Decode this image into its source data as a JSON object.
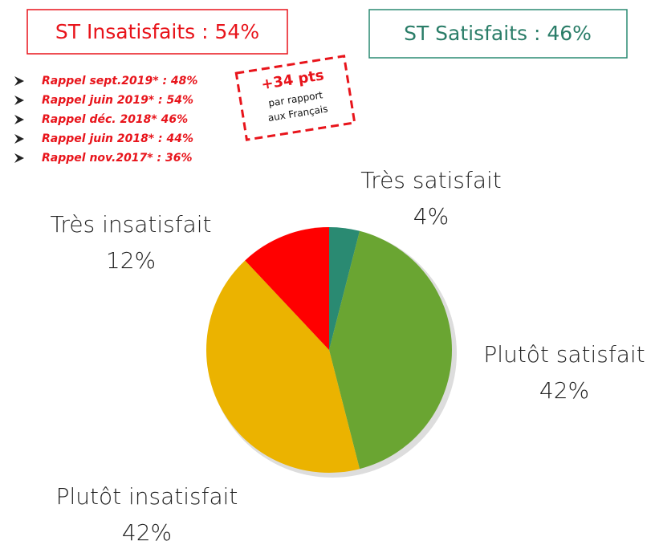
{
  "chart_data": {
    "type": "pie",
    "categories": [
      "Très satisfait",
      "Plutôt satisfait",
      "Plutôt insatisfait",
      "Très insatisfait"
    ],
    "values": [
      4,
      42,
      42,
      12
    ],
    "value_labels": [
      "4%",
      "42%",
      "42%",
      "12%"
    ],
    "colors": [
      "#2a8a72",
      "#6aa532",
      "#ebb300",
      "#ff0000"
    ],
    "annotations": {
      "box_insatisfaits": "ST Insatisfaits : 54%",
      "box_satisfaits": "ST Satisfaits : 46%",
      "rappels": [
        "Rappel sept.2019* : 48%",
        "Rappel juin 2019* : 54%",
        "Rappel déc. 2018* 46%",
        "Rappel juin 2018* : 44%",
        "Rappel nov.2017* : 36%"
      ],
      "callout": [
        "+34 pts",
        "par rapport",
        "aux Français"
      ]
    }
  }
}
